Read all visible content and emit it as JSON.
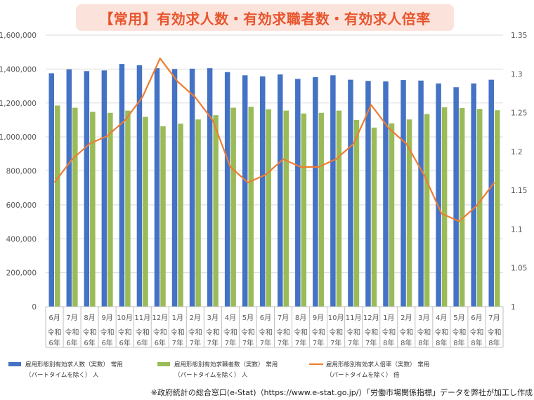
{
  "title": "【常用】有効求人数・有効求職者数・有効求人倍率",
  "source_note": "※政府統計の総合窓口(e-Stat)（https://www.e-stat.go.jp/）「労働市場関係指標」データを弊社が加工し作成",
  "colors": {
    "title_text": "#e8552d",
    "title_bg": "#fbe3dc",
    "openings": "#4472c4",
    "seekers": "#9bbb59",
    "ratio": "#ed7d31",
    "grid": "#d9d9d9",
    "axis_text": "#595959"
  },
  "chart_data": {
    "type": "bar",
    "categories": [
      [
        "6月",
        "令和",
        "6年"
      ],
      [
        "7月",
        "令和",
        "6年"
      ],
      [
        "8月",
        "令和",
        "6年"
      ],
      [
        "9月",
        "令和",
        "6年"
      ],
      [
        "10月",
        "令和",
        "6年"
      ],
      [
        "11月",
        "令和",
        "6年"
      ],
      [
        "12月",
        "令和",
        "6年"
      ],
      [
        "1月",
        "令和",
        "7年"
      ],
      [
        "2月",
        "令和",
        "7年"
      ],
      [
        "3月",
        "令和",
        "7年"
      ],
      [
        "4月",
        "令和",
        "7年"
      ],
      [
        "5月",
        "令和",
        "7年"
      ],
      [
        "6月",
        "令和",
        "7年"
      ],
      [
        "7月",
        "令和",
        "7年"
      ],
      [
        "8月",
        "令和",
        "7年"
      ],
      [
        "9月",
        "令和",
        "7年"
      ],
      [
        "10月",
        "令和",
        "7年"
      ],
      [
        "11月",
        "令和",
        "7年"
      ],
      [
        "12月",
        "令和",
        "7年"
      ],
      [
        "1月",
        "令和",
        "8年"
      ],
      [
        "2月",
        "令和",
        "8年"
      ],
      [
        "3月",
        "令和",
        "8年"
      ],
      [
        "4月",
        "令和",
        "8年"
      ],
      [
        "5月",
        "令和",
        "8年"
      ],
      [
        "6月",
        "令和",
        "8年"
      ],
      [
        "7月",
        "令和",
        "8年"
      ]
    ],
    "series": [
      {
        "name": "雇用形態別有効求人数（実数）常用（パートタイムを除く）人",
        "legend_lines": [
          "雇用形態別有効求人数（実数） 常用",
          "（パートタイムを除く） 人"
        ],
        "type": "bar",
        "axis": "left",
        "color": "#4472c4",
        "values": [
          1375000,
          1398000,
          1388000,
          1392000,
          1430000,
          1422000,
          1405000,
          1400000,
          1402000,
          1405000,
          1382000,
          1363000,
          1357000,
          1368000,
          1342000,
          1352000,
          1363000,
          1337000,
          1330000,
          1327000,
          1335000,
          1332000,
          1315000,
          1293000,
          1315000,
          1337000
        ]
      },
      {
        "name": "雇用形態別有効求職者数（実数）常用（パートタイムを除く）人",
        "legend_lines": [
          "雇用形態別有効求職者数（実数） 常用",
          "（パートタイムを除く） 人"
        ],
        "type": "bar",
        "axis": "left",
        "color": "#9bbb59",
        "values": [
          1185000,
          1172000,
          1148000,
          1142000,
          1155000,
          1118000,
          1063000,
          1078000,
          1103000,
          1128000,
          1172000,
          1178000,
          1163000,
          1155000,
          1138000,
          1142000,
          1155000,
          1100000,
          1055000,
          1080000,
          1103000,
          1135000,
          1175000,
          1170000,
          1165000,
          1157000
        ]
      },
      {
        "name": "雇用形態別有効求人倍率（実数）常用（パートタイムを除く）倍",
        "legend_lines": [
          "雇用形態別有効求人倍率（実数） 常用",
          "（パートタイムを除く） 倍"
        ],
        "type": "line",
        "axis": "right",
        "color": "#ed7d31",
        "values": [
          1.16,
          1.19,
          1.21,
          1.22,
          1.24,
          1.27,
          1.32,
          1.29,
          1.27,
          1.24,
          1.18,
          1.16,
          1.17,
          1.19,
          1.18,
          1.18,
          1.19,
          1.21,
          1.26,
          1.23,
          1.21,
          1.17,
          1.12,
          1.11,
          1.13,
          1.16
        ]
      }
    ],
    "y_left": {
      "min": 0,
      "max": 1600000,
      "ticks": [
        "0",
        "200,000",
        "400,000",
        "600,000",
        "800,000",
        "1,000,000",
        "1,200,000",
        "1,400,000",
        "1,600,000"
      ]
    },
    "y_right": {
      "min": 1,
      "max": 1.35,
      "ticks": [
        "1",
        "1.05",
        "1.1",
        "1.15",
        "1.2",
        "1.25",
        "1.3",
        "1.35"
      ]
    },
    "grid": true,
    "legend": "bottom"
  }
}
